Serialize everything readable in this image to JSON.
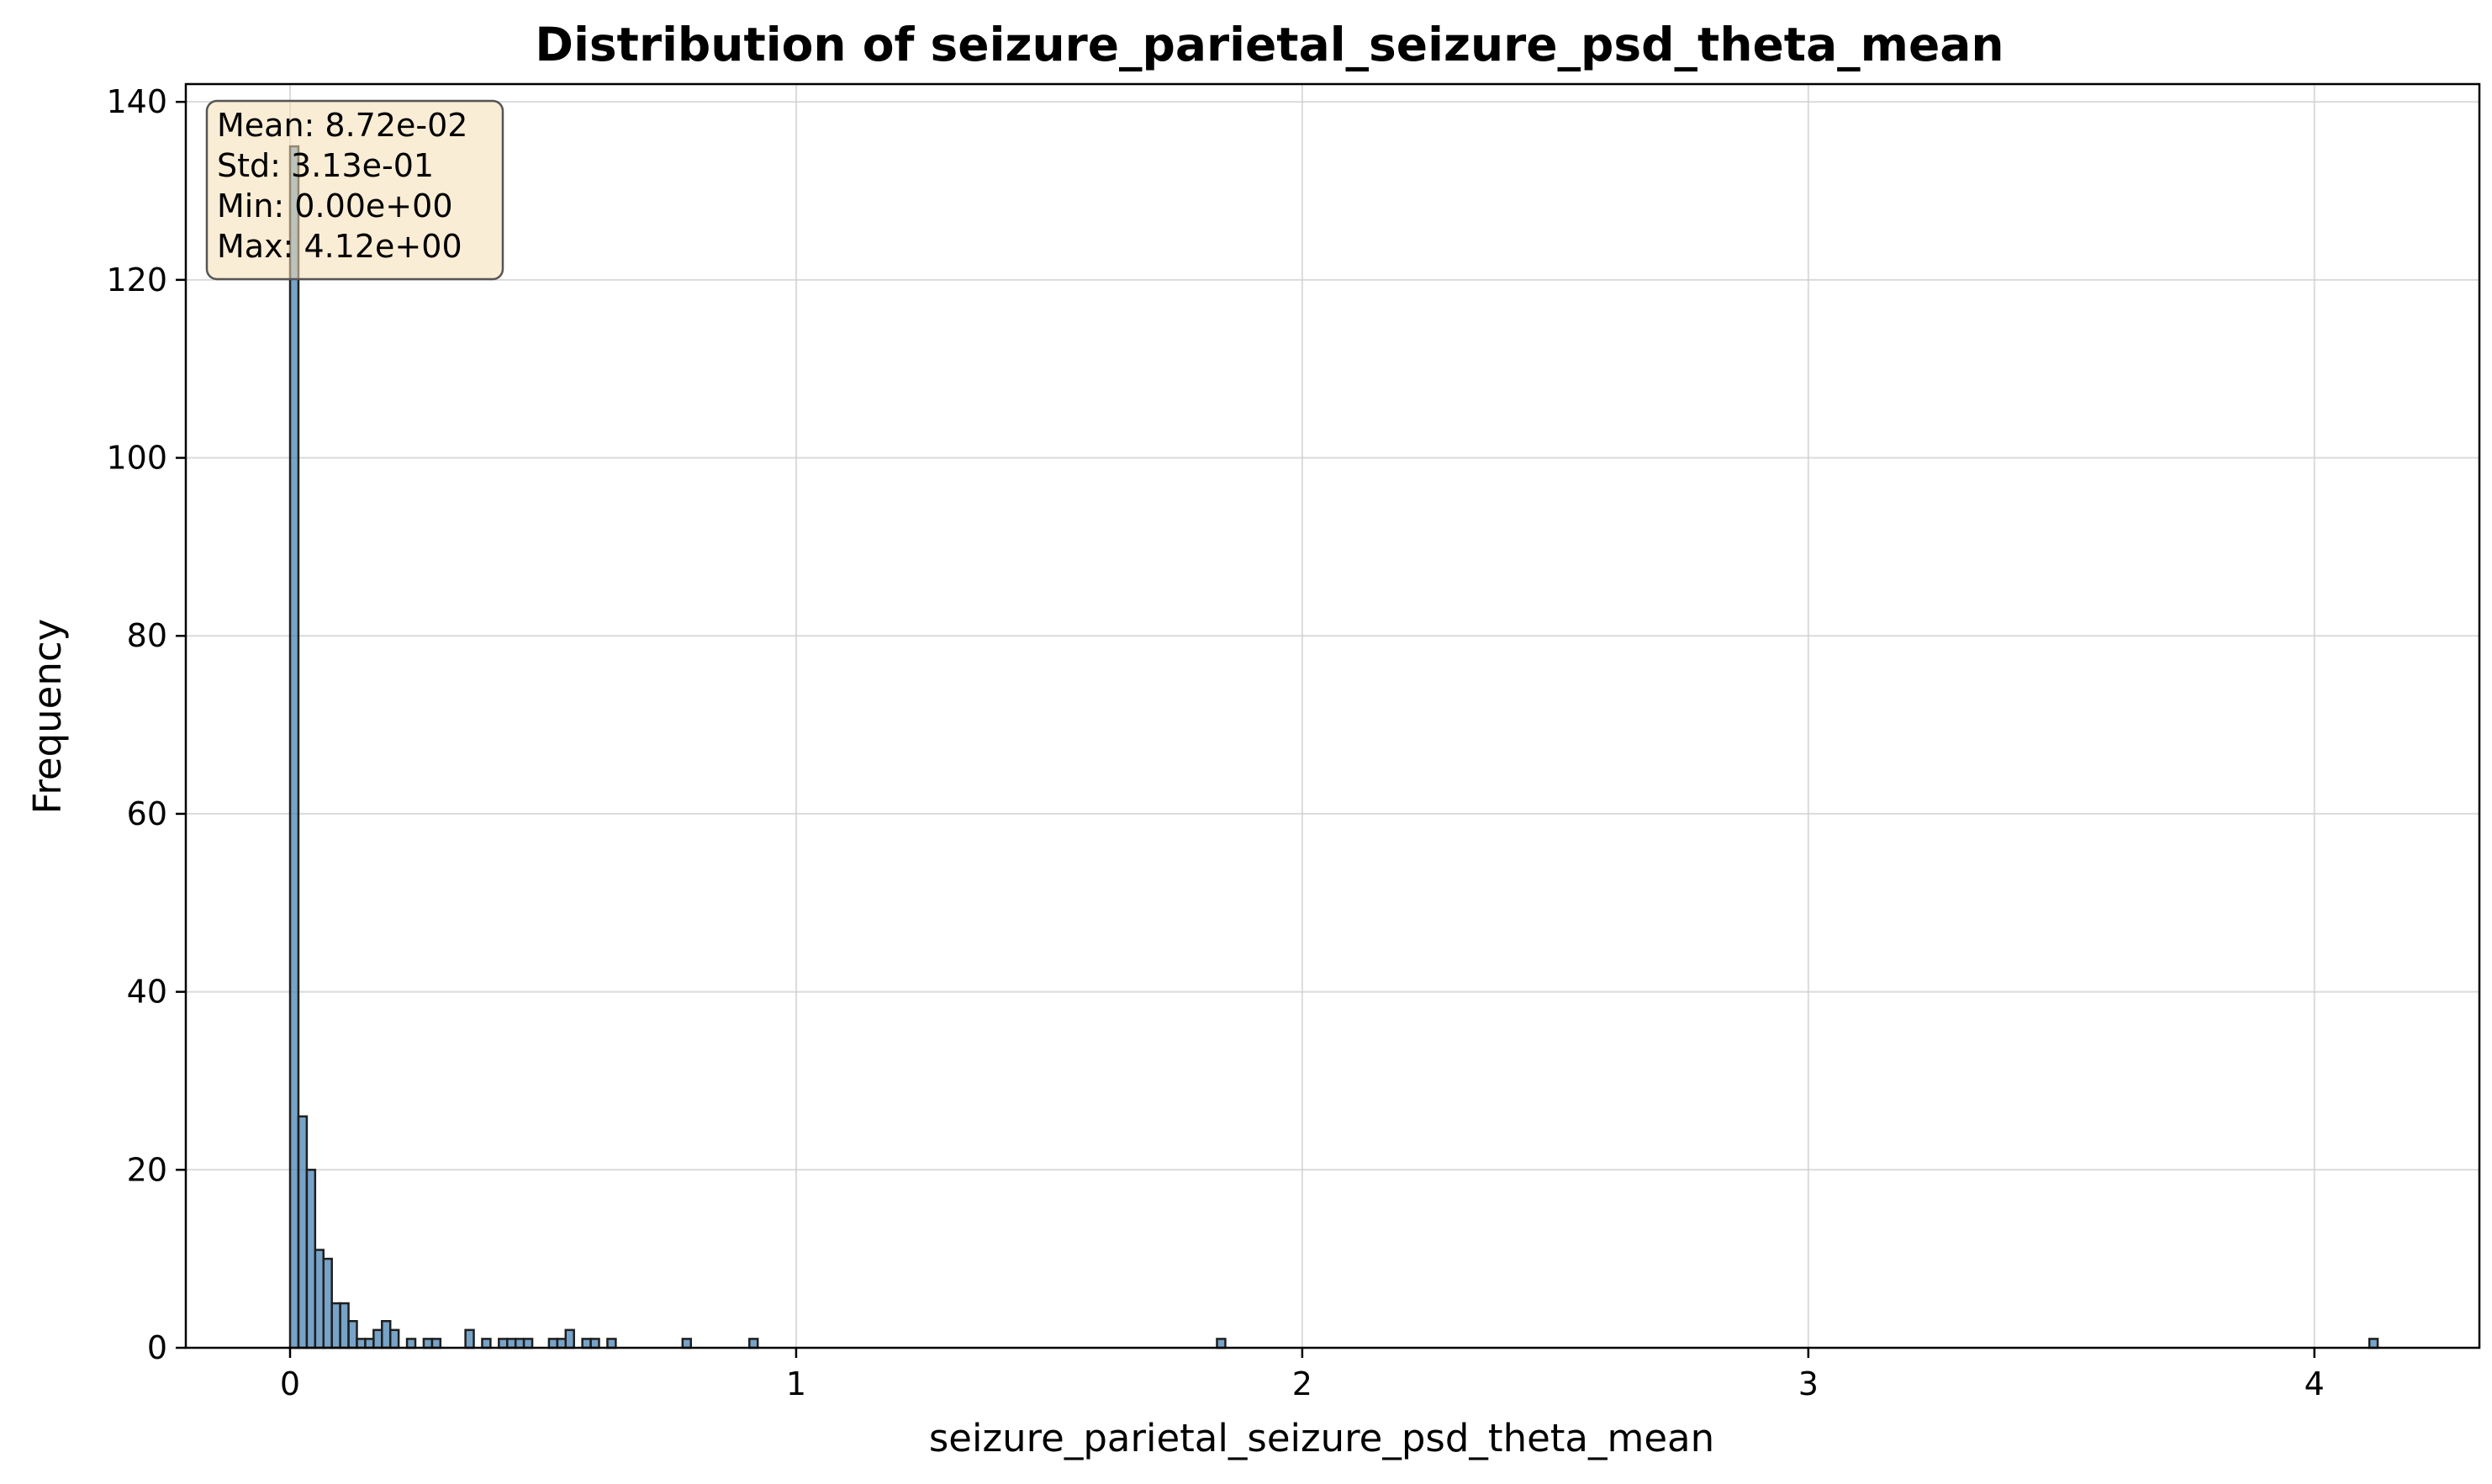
{
  "chart_data": {
    "type": "bar",
    "title": "Distribution of seizure_parietal_seizure_psd_theta_mean",
    "xlabel": "seizure_parietal_seizure_psd_theta_mean",
    "ylabel": "Frequency",
    "xlim": [
      -0.206,
      4.326
    ],
    "ylim": [
      0,
      142
    ],
    "x_ticks": [
      0,
      1,
      2,
      3,
      4
    ],
    "y_ticks": [
      0,
      20,
      40,
      60,
      80,
      100,
      120,
      140
    ],
    "grid": true,
    "bar_color": "#4a84b6",
    "bar_edge_color": "#1f1f1f",
    "bin_width": 0.0165,
    "bins": [
      {
        "x": 0.0083,
        "count": 135
      },
      {
        "x": 0.0248,
        "count": 26
      },
      {
        "x": 0.0413,
        "count": 20
      },
      {
        "x": 0.0578,
        "count": 11
      },
      {
        "x": 0.0743,
        "count": 10
      },
      {
        "x": 0.0908,
        "count": 5
      },
      {
        "x": 0.1073,
        "count": 5
      },
      {
        "x": 0.1238,
        "count": 3
      },
      {
        "x": 0.1403,
        "count": 1
      },
      {
        "x": 0.1568,
        "count": 1
      },
      {
        "x": 0.1733,
        "count": 2
      },
      {
        "x": 0.1898,
        "count": 3
      },
      {
        "x": 0.2063,
        "count": 2
      },
      {
        "x": 0.2393,
        "count": 1
      },
      {
        "x": 0.2723,
        "count": 1
      },
      {
        "x": 0.2888,
        "count": 1
      },
      {
        "x": 0.3548,
        "count": 2
      },
      {
        "x": 0.3878,
        "count": 1
      },
      {
        "x": 0.4208,
        "count": 1
      },
      {
        "x": 0.4373,
        "count": 1
      },
      {
        "x": 0.4538,
        "count": 1
      },
      {
        "x": 0.4703,
        "count": 1
      },
      {
        "x": 0.5198,
        "count": 1
      },
      {
        "x": 0.5363,
        "count": 1
      },
      {
        "x": 0.5528,
        "count": 2
      },
      {
        "x": 0.5858,
        "count": 1
      },
      {
        "x": 0.6023,
        "count": 1
      },
      {
        "x": 0.6353,
        "count": 1
      },
      {
        "x": 0.7838,
        "count": 1
      },
      {
        "x": 0.9158,
        "count": 1
      },
      {
        "x": 1.8398,
        "count": 1
      },
      {
        "x": 4.1168,
        "count": 1
      }
    ],
    "stats_box": {
      "lines": [
        "Mean: 8.72e-02",
        "Std: 3.13e-01",
        "Min: 0.00e+00",
        "Max: 4.12e+00"
      ],
      "background": "#f5deb3",
      "placement": "top-left"
    }
  }
}
